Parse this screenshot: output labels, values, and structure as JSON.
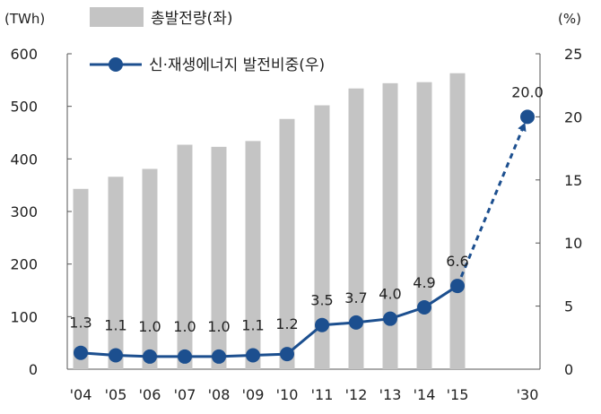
{
  "chart_data": {
    "type": "bar",
    "categories": [
      "'04",
      "'05",
      "'06",
      "'07",
      "'08",
      "'09",
      "'10",
      "'11",
      "'12",
      "'13",
      "'14",
      "'15",
      "'30"
    ],
    "series": [
      {
        "name": "총발전량(좌)",
        "kind": "bar",
        "axis": "left",
        "values": [
          343,
          366,
          381,
          427,
          423,
          434,
          476,
          502,
          534,
          544,
          546,
          563,
          null
        ]
      },
      {
        "name": "신·재생에너지 발전비중(우)",
        "kind": "line",
        "axis": "right",
        "values": [
          1.3,
          1.1,
          1.0,
          1.0,
          1.0,
          1.1,
          1.2,
          3.5,
          3.7,
          4.0,
          4.9,
          6.6,
          20.0
        ],
        "labels": [
          "1.3",
          "1.1",
          "1.0",
          "1.0",
          "1.0",
          "1.1",
          "1.2",
          "3.5",
          "3.7",
          "4.0",
          "4.9",
          "6.6",
          "20.0"
        ]
      }
    ],
    "left_axis": {
      "unit": "(TWh)",
      "ylim": [
        0,
        600
      ],
      "ticks": [
        "0",
        "100",
        "200",
        "300",
        "400",
        "500",
        "600"
      ]
    },
    "right_axis": {
      "unit": "(%)",
      "ylim": [
        0,
        25
      ],
      "ticks": [
        "0",
        "5",
        "10",
        "15",
        "20",
        "25"
      ]
    },
    "grid": false,
    "legend": "top-left",
    "colors": {
      "bar": "#c4c4c4",
      "line": "#1c4f8f",
      "marker": "#1c4f8f"
    }
  }
}
